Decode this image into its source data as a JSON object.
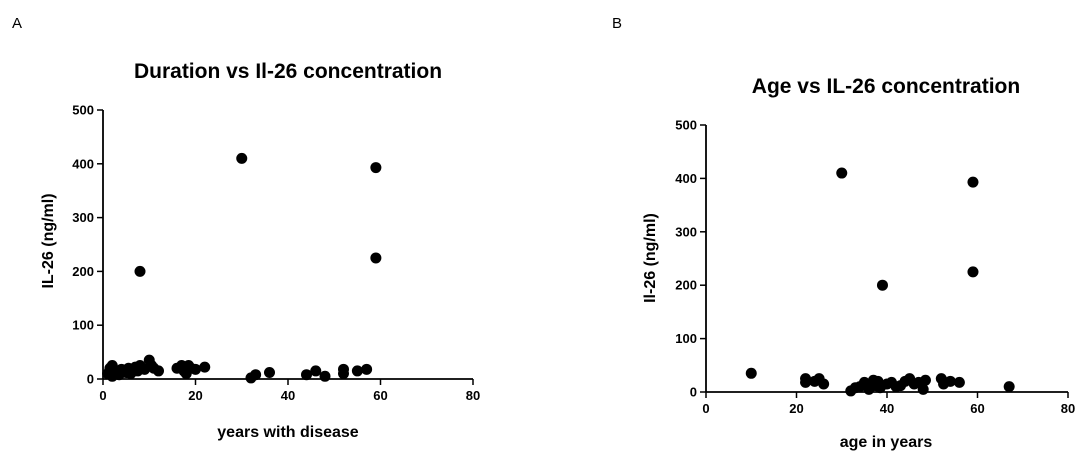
{
  "chart_data": [
    {
      "panel": "A",
      "type": "scatter",
      "title": "Duration vs Il-26 concentration",
      "xlabel": "years with disease",
      "ylabel": "IL-26 (ng/ml)",
      "xlim": [
        0,
        80
      ],
      "ylim": [
        0,
        500
      ],
      "xticks": [
        0,
        20,
        40,
        60,
        80
      ],
      "yticks": [
        0,
        100,
        200,
        300,
        400,
        500
      ],
      "grid": false,
      "points": [
        [
          1,
          10
        ],
        [
          1.5,
          20
        ],
        [
          2,
          25
        ],
        [
          2,
          5
        ],
        [
          3,
          15
        ],
        [
          3.5,
          8
        ],
        [
          4,
          18
        ],
        [
          5,
          12
        ],
        [
          5.5,
          20
        ],
        [
          6,
          10
        ],
        [
          7,
          22
        ],
        [
          7.5,
          15
        ],
        [
          8,
          25
        ],
        [
          8,
          200
        ],
        [
          9,
          18
        ],
        [
          10,
          35
        ],
        [
          10.5,
          25
        ],
        [
          11,
          20
        ],
        [
          12,
          15
        ],
        [
          16,
          20
        ],
        [
          17,
          25
        ],
        [
          17.5,
          15
        ],
        [
          18,
          10
        ],
        [
          18.5,
          25
        ],
        [
          19,
          20
        ],
        [
          20,
          18
        ],
        [
          22,
          22
        ],
        [
          30,
          410
        ],
        [
          32,
          2
        ],
        [
          33,
          8
        ],
        [
          36,
          12
        ],
        [
          44,
          8
        ],
        [
          46,
          15
        ],
        [
          48,
          5
        ],
        [
          52,
          10
        ],
        [
          52,
          18
        ],
        [
          55,
          15
        ],
        [
          57,
          18
        ],
        [
          59,
          393
        ],
        [
          59,
          225
        ]
      ]
    },
    {
      "panel": "B",
      "type": "scatter",
      "title": "Age vs IL-26 concentration",
      "xlabel": "age in years",
      "ylabel": "Il-26 (ng/ml)",
      "xlim": [
        0,
        80
      ],
      "ylim": [
        0,
        500
      ],
      "xticks": [
        0,
        20,
        40,
        60,
        80
      ],
      "yticks": [
        0,
        100,
        200,
        300,
        400,
        500
      ],
      "grid": false,
      "points": [
        [
          10,
          35
        ],
        [
          22,
          25
        ],
        [
          22,
          18
        ],
        [
          24,
          20
        ],
        [
          25,
          25
        ],
        [
          26,
          15
        ],
        [
          30,
          410
        ],
        [
          32,
          2
        ],
        [
          33,
          8
        ],
        [
          34,
          10
        ],
        [
          35,
          18
        ],
        [
          36,
          5
        ],
        [
          37,
          22
        ],
        [
          37.5,
          12
        ],
        [
          38,
          20
        ],
        [
          38.5,
          8
        ],
        [
          39,
          200
        ],
        [
          40,
          15
        ],
        [
          41,
          18
        ],
        [
          42,
          10
        ],
        [
          43,
          12
        ],
        [
          44,
          20
        ],
        [
          45,
          25
        ],
        [
          46,
          15
        ],
        [
          47,
          18
        ],
        [
          48,
          5
        ],
        [
          48.5,
          22
        ],
        [
          52,
          25
        ],
        [
          52.5,
          15
        ],
        [
          54,
          20
        ],
        [
          56,
          18
        ],
        [
          59,
          393
        ],
        [
          59,
          225
        ],
        [
          67,
          10
        ]
      ]
    }
  ]
}
